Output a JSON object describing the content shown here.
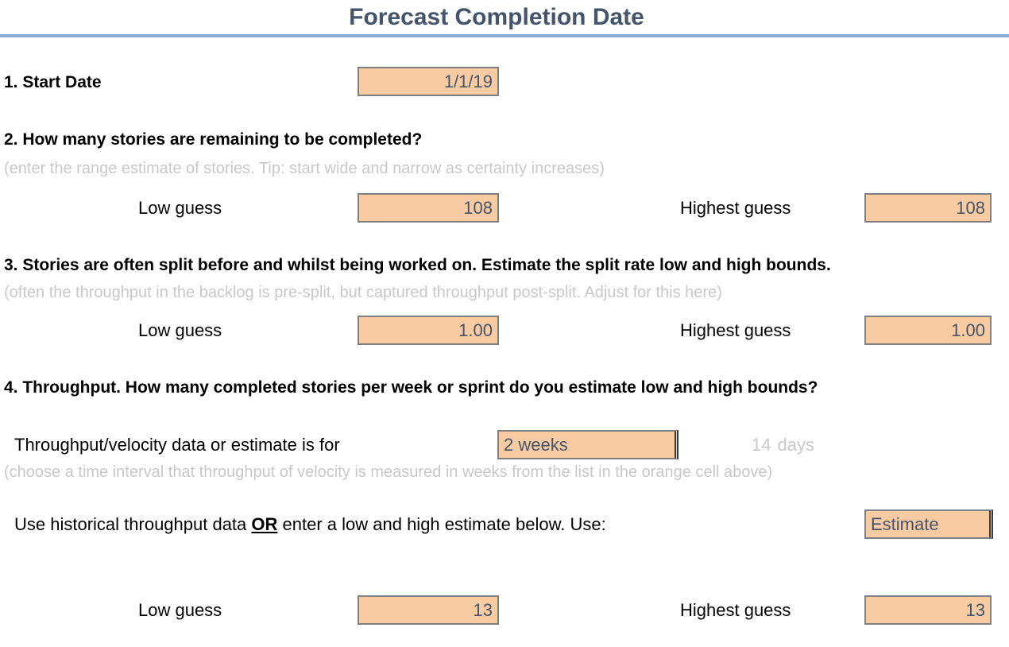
{
  "title": "Forecast Completion Date",
  "start_date": {
    "label": "1. Start Date",
    "value": "1/1/19"
  },
  "stories": {
    "heading": "2. How many stories are remaining to be completed?",
    "hint": "(enter the range estimate of stories. Tip: start wide and narrow as certainty increases)",
    "low_label": "Low guess",
    "low_value": "108",
    "high_label": "Highest guess",
    "high_value": "108"
  },
  "split": {
    "heading": "3. Stories are often split before and whilst being worked on. Estimate the split rate low and high bounds.",
    "hint": "(often the throughput in the backlog is pre-split, but captured throughput post-split. Adjust for this here)",
    "low_label": "Low guess",
    "low_value": "1.00",
    "high_label": "Highest guess",
    "high_value": "1.00"
  },
  "throughput": {
    "heading": "4. Throughput. How many completed stories per week or sprint do you estimate low and high bounds?",
    "interval_label": "Throughput/velocity data or estimate is for",
    "interval_value": "2 weeks",
    "days_count": "14",
    "days_unit": "days",
    "interval_hint": "(choose a time interval that throughput of velocity is measured in weeks from the list in the orange cell above)",
    "source_label_pre": "Use historical throughput data ",
    "source_label_or": "OR",
    "source_label_post": " enter a low and high estimate below. Use:",
    "source_value": "Estimate",
    "low_label": "Low guess",
    "low_value": "13",
    "high_label": "Highest guess",
    "high_value": "13"
  },
  "colors": {
    "title": "#44546a",
    "rule": "#8eaadb",
    "input_fill": "#f8cba3",
    "hint_text": "#c8c8c8"
  }
}
